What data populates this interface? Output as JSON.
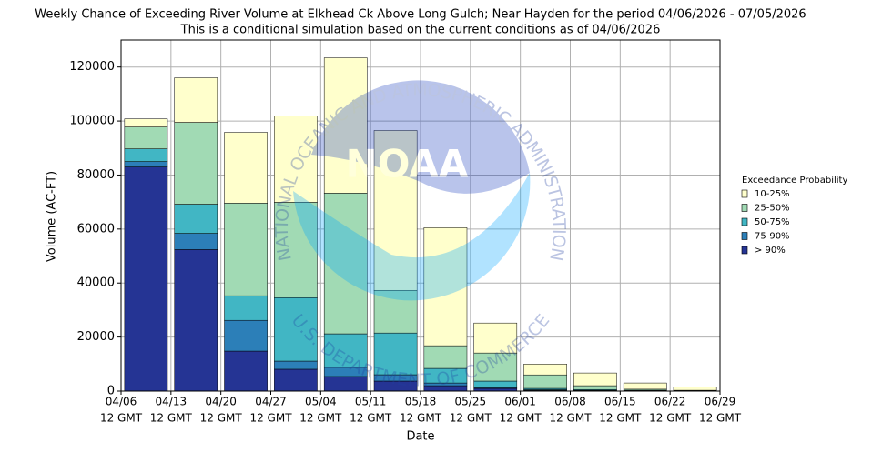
{
  "chart_data": {
    "type": "stacked_bar",
    "title": "Weekly Chance of Exceeding River Volume at Elkhead Ck Above Long Gulch; Near Hayden for the period 04/06/2026 - 07/05/2026",
    "subtitle": "This is a conditional simulation based on the current conditions as of 04/06/2026",
    "x_label": "Date",
    "y_label": "Volume (AC-FT)",
    "xticks": [
      "04/06",
      "04/13",
      "04/20",
      "04/27",
      "05/04",
      "05/11",
      "05/18",
      "05/25",
      "06/01",
      "06/08",
      "06/15",
      "06/22",
      "06/29"
    ],
    "xtick_sublabel": "12 GMT",
    "ylim": [
      0,
      130000
    ],
    "yticks": [
      0,
      20000,
      40000,
      60000,
      80000,
      100000,
      120000
    ],
    "grid": true,
    "legend_title": "Exceedance Probability",
    "legend_position": "right",
    "series": [
      {
        "name": "> 90%",
        "color": "#253494",
        "values": [
          83000,
          52400,
          14800,
          8100,
          5400,
          3700,
          2000,
          1000,
          300,
          200,
          100,
          50
        ]
      },
      {
        "name": "75-90%",
        "color": "#2c7fb8",
        "values": [
          2000,
          6000,
          11400,
          3000,
          3400,
          2350,
          1000,
          300,
          200,
          100,
          50,
          30
        ]
      },
      {
        "name": "50-75%",
        "color": "#41b6c4",
        "values": [
          4700,
          10800,
          9100,
          23500,
          12400,
          15450,
          5400,
          2400,
          500,
          300,
          150,
          70
        ]
      },
      {
        "name": "25-50%",
        "color": "#a1dab4",
        "values": [
          8100,
          30300,
          34300,
          35300,
          52100,
          15800,
          8400,
          10400,
          5000,
          1400,
          400,
          150
        ]
      },
      {
        "name": "10-25%",
        "color": "#ffffcc",
        "values": [
          3000,
          16500,
          26200,
          31900,
          50100,
          59200,
          43700,
          11100,
          4000,
          4700,
          2300,
          1200
        ]
      }
    ],
    "watermark": {
      "logo": "NOAA",
      "top_text": "NATIONAL OCEANIC AND ATMOSPHERIC ADMINISTRATION",
      "bottom_text": "U.S. DEPARTMENT OF COMMERCE"
    }
  }
}
